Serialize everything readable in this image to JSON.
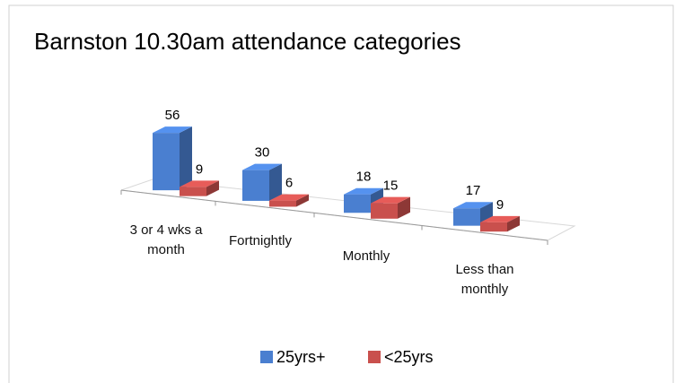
{
  "chart_data": {
    "type": "bar3d",
    "title": "Barnston 10.30am attendance categories",
    "categories": [
      "3 or 4 wks a month",
      "Fortnightly",
      "Monthly",
      "Less than monthly"
    ],
    "series": [
      {
        "name": "25yrs+",
        "color": "#4a7fd0",
        "values": [
          56,
          30,
          18,
          17
        ]
      },
      {
        "name": "<25yrs",
        "color": "#c9504d",
        "values": [
          9,
          6,
          15,
          9
        ]
      }
    ],
    "legend": "bottom"
  }
}
